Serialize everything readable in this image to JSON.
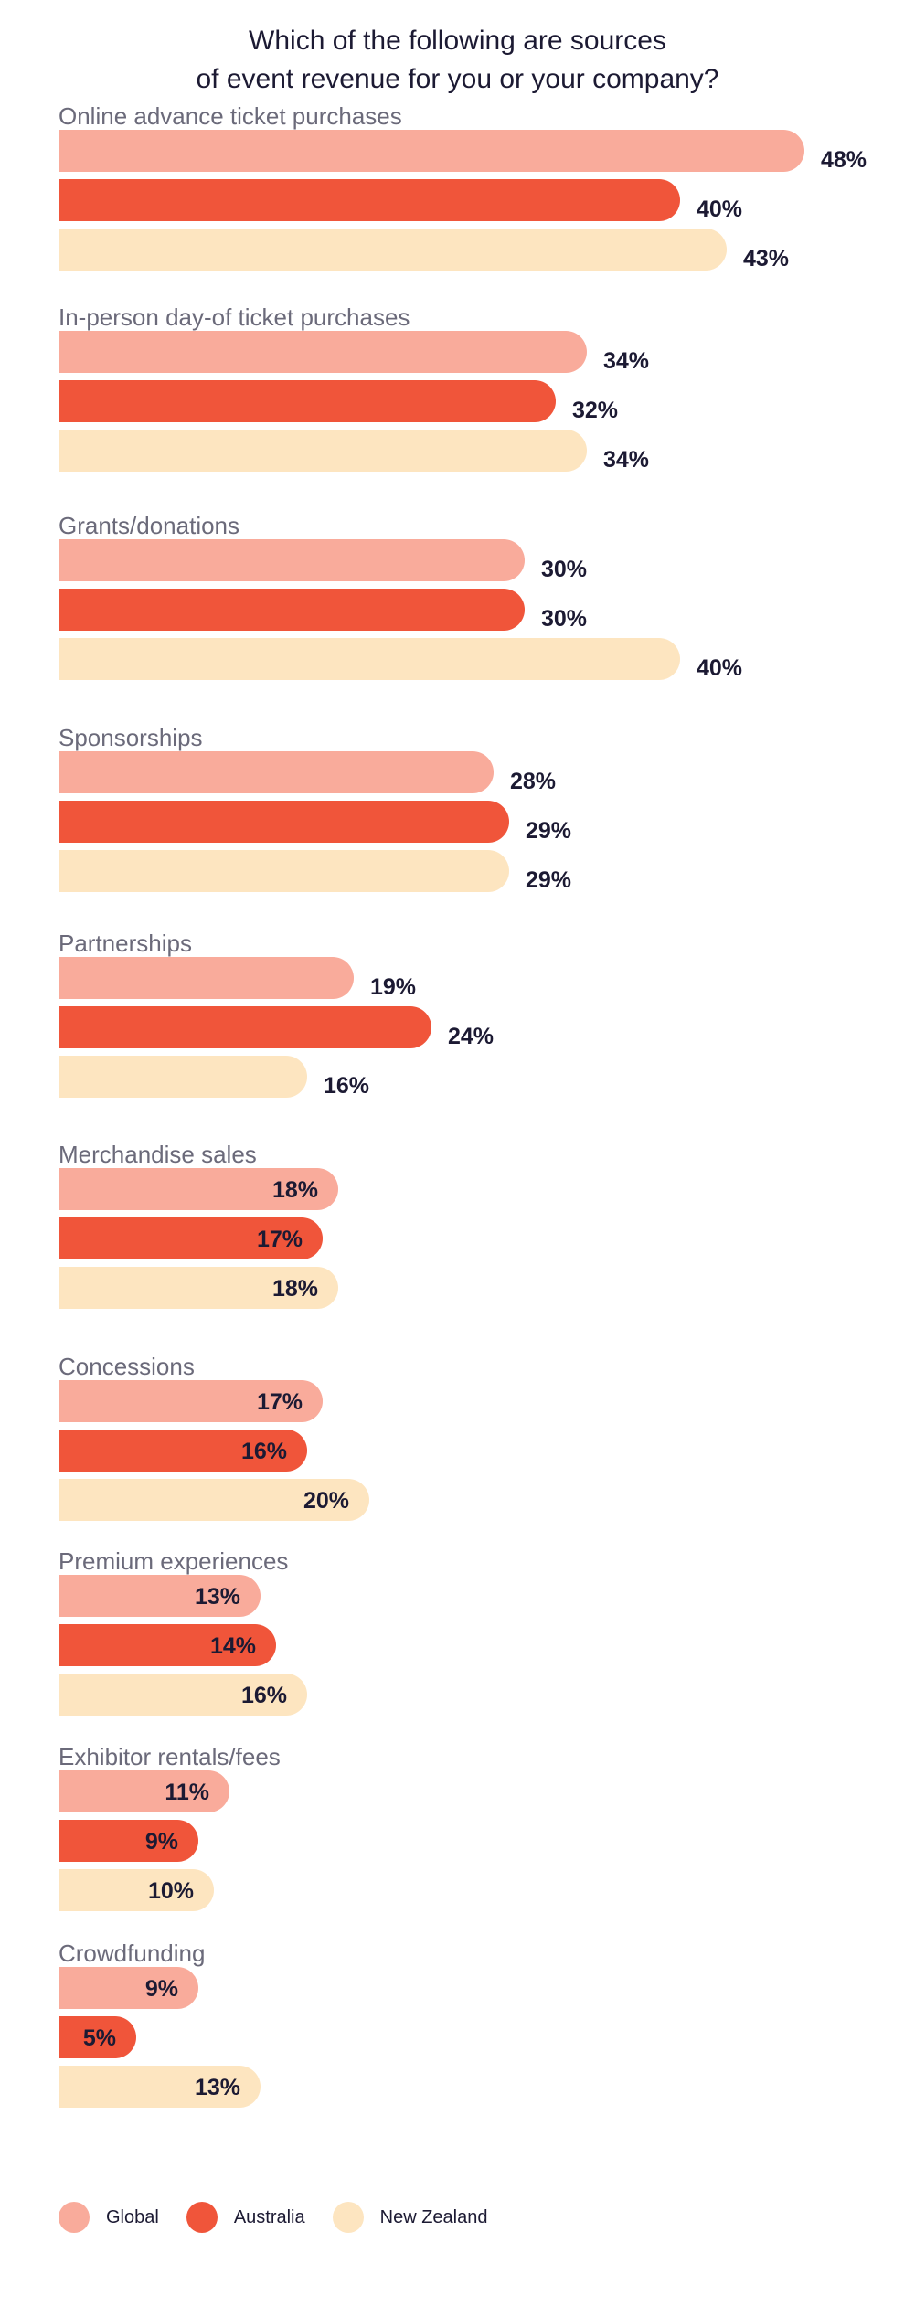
{
  "title_line1": "Which of the following are sources",
  "title_line2": "of event revenue for you or your company?",
  "colors": {
    "Global": "#f9ab9b",
    "Australia": "#f0553a",
    "New Zealand": "#fde5c0"
  },
  "chart_data": {
    "type": "bar",
    "orientation": "horizontal",
    "title": "Which of the following are sources of event revenue for you or your company?",
    "unit": "%",
    "categories": [
      "Online advance ticket purchases",
      "In-person day-of ticket purchases",
      "Grants/donations",
      "Sponsorships",
      "Partnerships",
      "Merchandise sales",
      "Concessions",
      "Premium experiences",
      "Exhibitor rentals/fees",
      "Crowdfunding"
    ],
    "series": [
      {
        "name": "Global",
        "values": [
          48,
          34,
          30,
          28,
          19,
          18,
          17,
          13,
          11,
          9
        ]
      },
      {
        "name": "Australia",
        "values": [
          40,
          32,
          30,
          29,
          24,
          17,
          16,
          14,
          9,
          5
        ]
      },
      {
        "name": "New Zealand",
        "values": [
          43,
          34,
          40,
          29,
          16,
          18,
          20,
          16,
          10,
          13
        ]
      }
    ],
    "legend": "bottom-left",
    "grid": false
  }
}
